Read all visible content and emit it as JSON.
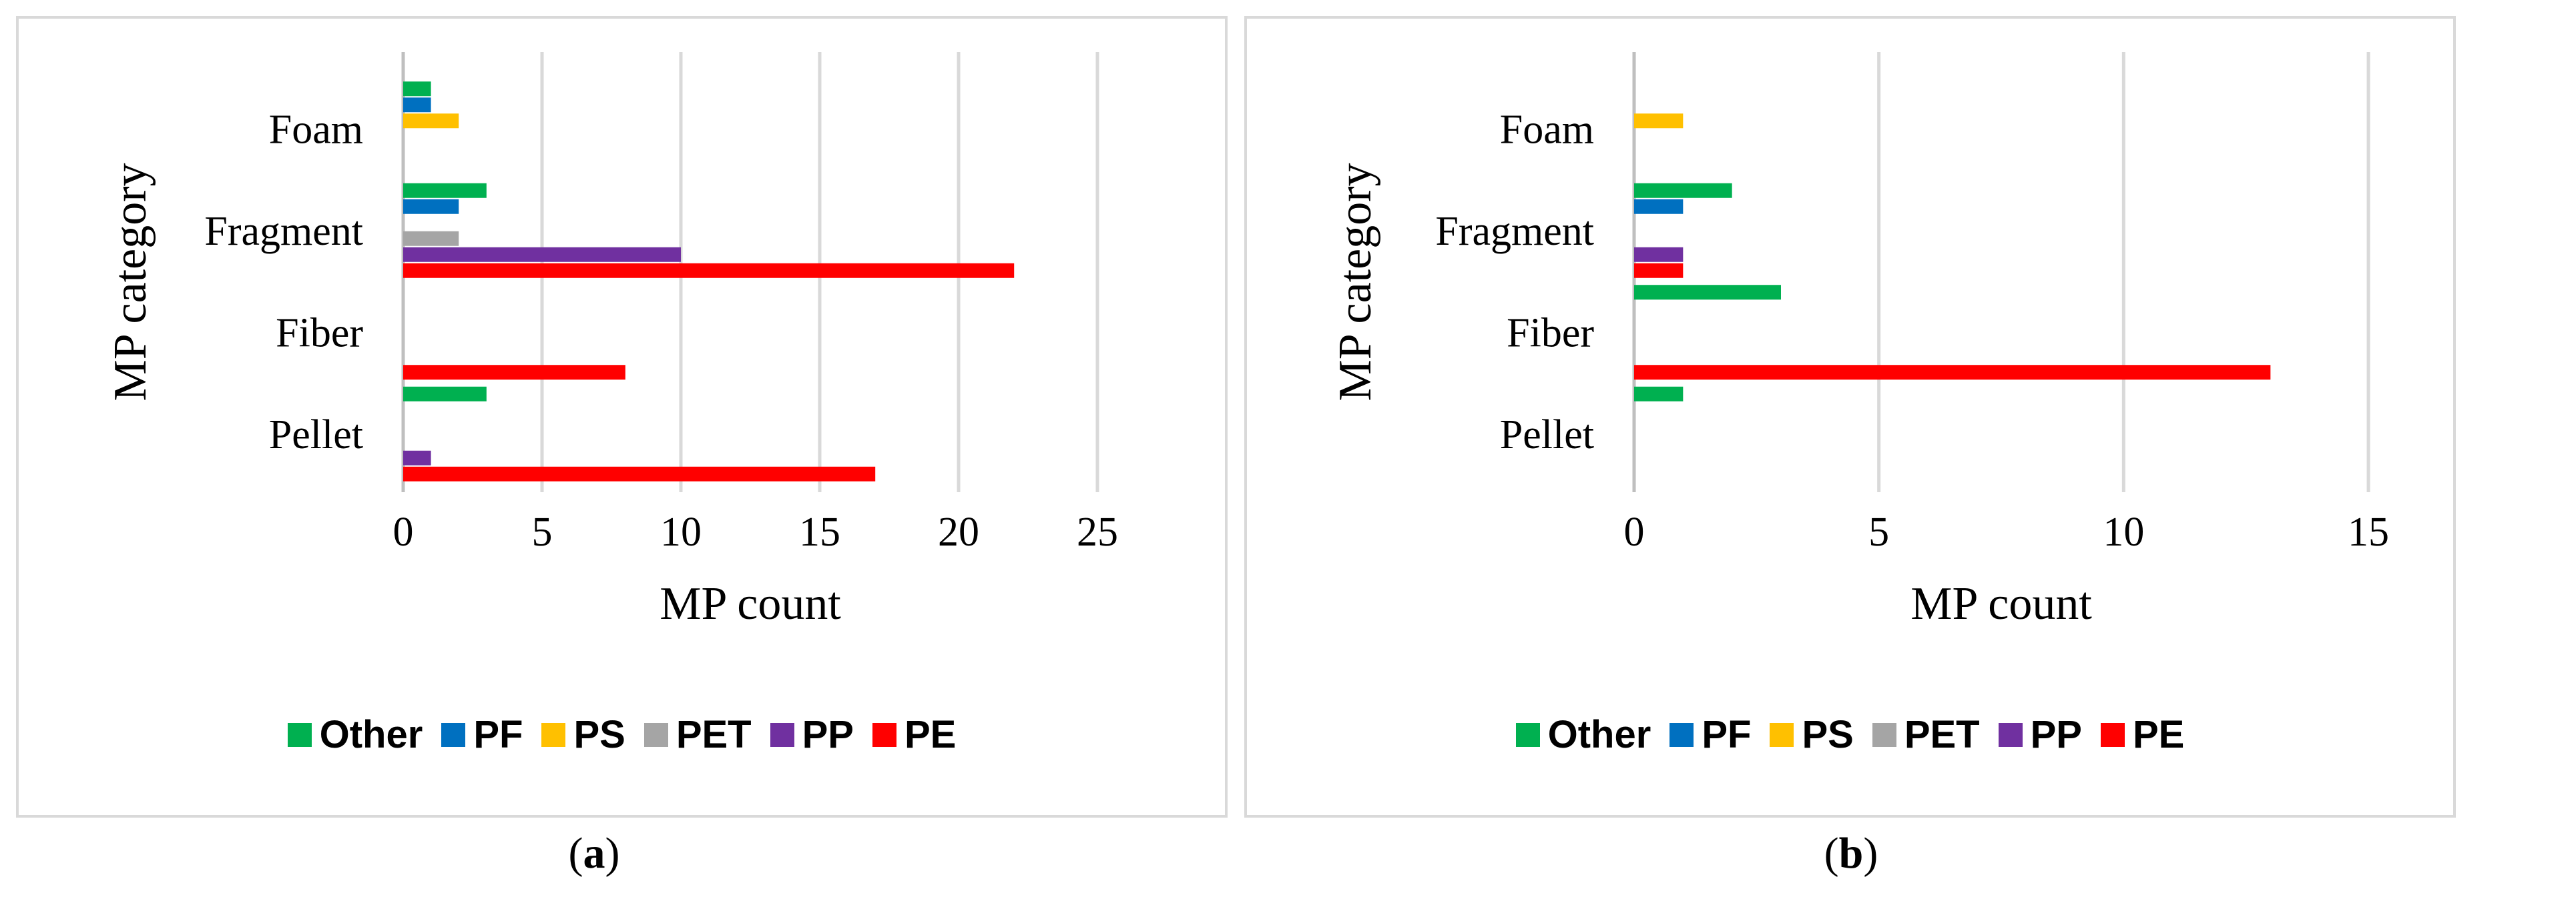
{
  "series_colors": {
    "Other": "#00b050",
    "PF": "#0070c0",
    "PS": "#ffc000",
    "PET": "#a5a5a5",
    "PP": "#7030a0",
    "PE": "#ff0000"
  },
  "legend": [
    "Other",
    "PF",
    "PS",
    "PET",
    "PP",
    "PE"
  ],
  "chart_data": [
    {
      "type": "bar",
      "orientation": "horizontal",
      "caption": "(a)",
      "caption_letter": "a",
      "categories": [
        "Foam",
        "Fragment",
        "Fiber",
        "Pellet"
      ],
      "series": [
        {
          "name": "Other",
          "values": [
            1,
            3,
            0,
            3
          ]
        },
        {
          "name": "PF",
          "values": [
            1,
            2,
            0,
            0
          ]
        },
        {
          "name": "PS",
          "values": [
            2,
            0,
            0,
            0
          ]
        },
        {
          "name": "PET",
          "values": [
            0,
            2,
            0,
            0
          ]
        },
        {
          "name": "PP",
          "values": [
            0,
            10,
            0,
            1
          ]
        },
        {
          "name": "PE",
          "values": [
            0,
            22,
            8,
            17
          ]
        }
      ],
      "xlabel": "MP count",
      "ylabel": "MP category",
      "xlim": [
        0,
        25
      ],
      "xticks": [
        0,
        5,
        10,
        15,
        20,
        25
      ],
      "grid": true,
      "legend_position": "bottom"
    },
    {
      "type": "bar",
      "orientation": "horizontal",
      "caption": "(b)",
      "caption_letter": "b",
      "categories": [
        "Foam",
        "Fragment",
        "Fiber",
        "Pellet"
      ],
      "series": [
        {
          "name": "Other",
          "values": [
            0,
            2,
            3,
            1
          ]
        },
        {
          "name": "PF",
          "values": [
            0,
            1,
            0,
            0
          ]
        },
        {
          "name": "PS",
          "values": [
            1,
            0,
            0,
            0
          ]
        },
        {
          "name": "PET",
          "values": [
            0,
            0,
            0,
            0
          ]
        },
        {
          "name": "PP",
          "values": [
            0,
            1,
            0,
            0
          ]
        },
        {
          "name": "PE",
          "values": [
            0,
            1,
            13,
            0
          ]
        }
      ],
      "xlabel": "MP count",
      "ylabel": "MP category",
      "xlim": [
        0,
        15
      ],
      "xticks": [
        0,
        5,
        10,
        15
      ],
      "grid": true,
      "legend_position": "bottom"
    }
  ]
}
